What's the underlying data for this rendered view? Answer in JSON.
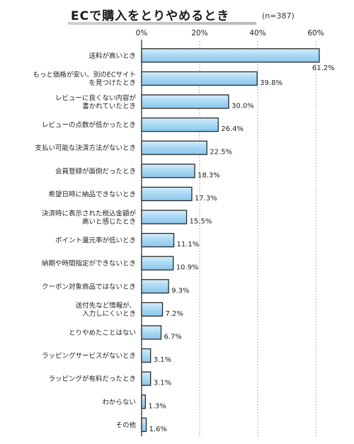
{
  "title": "ECで購入をとりやめるとき",
  "sample_size": "(n=387)",
  "chart_data": {
    "type": "bar",
    "orientation": "horizontal",
    "categories": [
      [
        "送料が高いとき"
      ],
      [
        "もっと価格が安い、別のECサイト",
        "を見つけたとき"
      ],
      [
        "レビューに良くない内容が",
        "書かれていたとき"
      ],
      [
        "レビューの点数が低かったとき"
      ],
      [
        "支払い可能な決済方法がないとき"
      ],
      [
        "会員登録が面倒だったとき"
      ],
      [
        "希望日時に納品できないとき"
      ],
      [
        "決済時に表示された税込金額が",
        "高いと感じたとき"
      ],
      [
        "ポイント還元率が低いとき"
      ],
      [
        "納期や時間指定ができないとき"
      ],
      [
        "クーポン対象商品ではないとき"
      ],
      [
        "送付先など情報が、",
        "入力しにくいとき"
      ],
      [
        "とりやめたことはない"
      ],
      [
        "ラッピングサービスがないとき"
      ],
      [
        "ラッピングが有料だったとき"
      ],
      [
        "わからない"
      ],
      [
        "その他"
      ]
    ],
    "values": [
      61.2,
      39.8,
      30.0,
      26.4,
      22.5,
      18.3,
      17.3,
      15.5,
      11.1,
      10.9,
      9.3,
      7.2,
      6.7,
      3.1,
      3.1,
      1.3,
      1.6
    ],
    "value_labels": [
      "61.2%",
      "39.8%",
      "30.0%",
      "26.4%",
      "22.5%",
      "18.3%",
      "17.3%",
      "15.5%",
      "11.1%",
      "10.9%",
      "9.3%",
      "7.2%",
      "6.7%",
      "3.1%",
      "3.1%",
      "1.3%",
      "1.6%"
    ],
    "ticks": [
      0,
      20,
      40,
      60
    ],
    "tick_labels": [
      "0%",
      "20%",
      "40%",
      "60%"
    ],
    "xlim": [
      0,
      65
    ],
    "grid": true,
    "bar_color": "#a8d8f4",
    "bar_border_color": "#2a2a2a"
  }
}
